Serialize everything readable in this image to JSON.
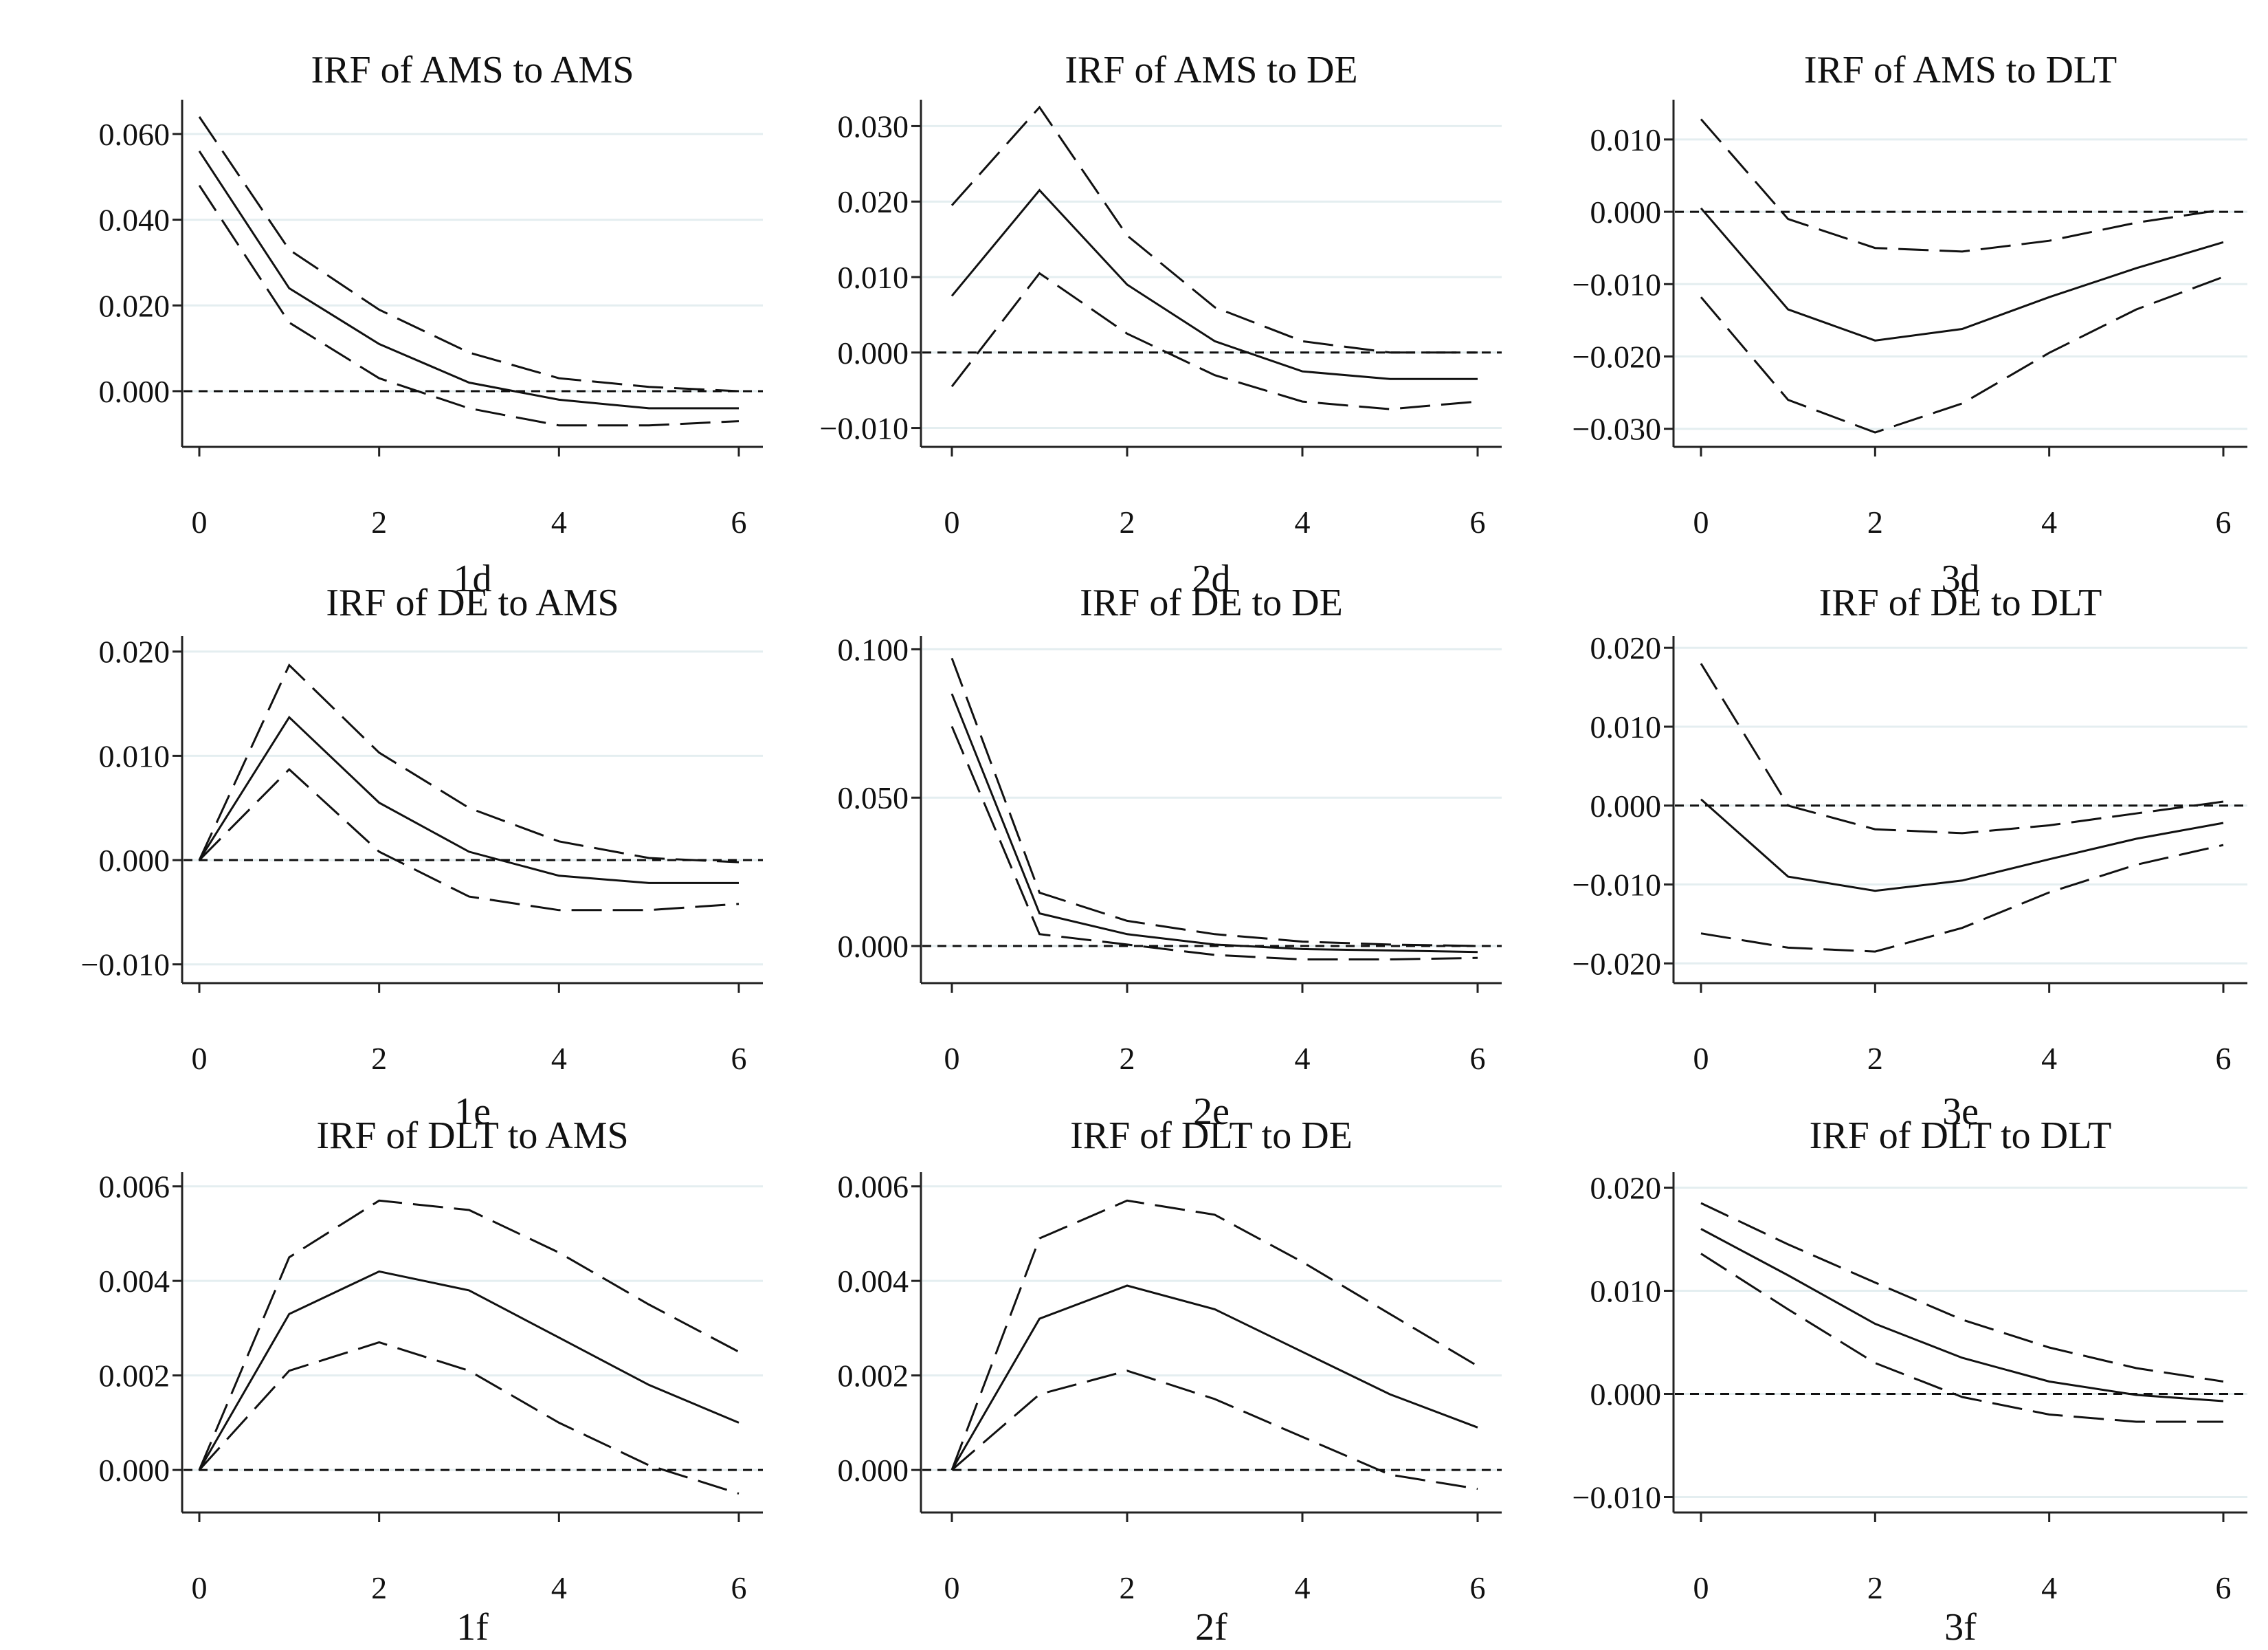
{
  "chart_data": [
    {
      "type": "line",
      "title": "IRF of AMS to AMS",
      "label": "1d",
      "x": [
        0,
        1,
        2,
        3,
        4,
        5,
        6
      ],
      "xticks": [
        "0",
        "2",
        "4",
        "6"
      ],
      "ylim": [
        -0.013,
        0.068
      ],
      "yticks": [
        0.0,
        0.02,
        0.04,
        0.06
      ],
      "ytick_labels": [
        "0.000",
        "0.020",
        "0.040",
        "0.060"
      ],
      "grid": true,
      "series": [
        {
          "role": "irf",
          "values": [
            0.056,
            0.024,
            0.011,
            0.002,
            -0.002,
            -0.004,
            -0.004
          ]
        },
        {
          "role": "upper",
          "values": [
            0.064,
            0.033,
            0.019,
            0.009,
            0.003,
            0.001,
            0.0
          ]
        },
        {
          "role": "lower",
          "values": [
            0.048,
            0.016,
            0.003,
            -0.004,
            -0.008,
            -0.008,
            -0.007
          ]
        }
      ]
    },
    {
      "type": "line",
      "title": "IRF of AMS to DE",
      "label": "2d",
      "x": [
        0,
        1,
        2,
        3,
        4,
        5,
        6
      ],
      "xticks": [
        "0",
        "2",
        "4",
        "6"
      ],
      "ylim": [
        -0.0125,
        0.0335
      ],
      "yticks": [
        -0.01,
        0.0,
        0.01,
        0.02,
        0.03
      ],
      "ytick_labels": [
        "−0.010",
        "0.000",
        "0.010",
        "0.020",
        "0.030"
      ],
      "grid": true,
      "series": [
        {
          "role": "irf",
          "values": [
            0.0075,
            0.0215,
            0.009,
            0.0015,
            -0.0025,
            -0.0035,
            -0.0035
          ]
        },
        {
          "role": "upper",
          "values": [
            0.0195,
            0.0325,
            0.0155,
            0.006,
            0.0015,
            0.0,
            0.0
          ]
        },
        {
          "role": "lower",
          "values": [
            -0.0045,
            0.0105,
            0.0025,
            -0.003,
            -0.0065,
            -0.0075,
            -0.0065
          ]
        }
      ]
    },
    {
      "type": "line",
      "title": "IRF of AMS to DLT",
      "label": "3d",
      "x": [
        0,
        1,
        2,
        3,
        4,
        5,
        6
      ],
      "xticks": [
        "0",
        "2",
        "4",
        "6"
      ],
      "ylim": [
        -0.0325,
        0.0155
      ],
      "yticks": [
        -0.03,
        -0.02,
        -0.01,
        0.0,
        0.01
      ],
      "ytick_labels": [
        "−0.030",
        "−0.020",
        "−0.010",
        "0.000",
        "0.010"
      ],
      "grid": true,
      "series": [
        {
          "role": "irf",
          "values": [
            0.0005,
            -0.0135,
            -0.0178,
            -0.0162,
            -0.0118,
            -0.0078,
            -0.0042
          ]
        },
        {
          "role": "upper",
          "values": [
            0.0128,
            -0.001,
            -0.005,
            -0.0055,
            -0.004,
            -0.0015,
            0.0003
          ]
        },
        {
          "role": "lower",
          "values": [
            -0.0118,
            -0.026,
            -0.0305,
            -0.0265,
            -0.0195,
            -0.0135,
            -0.009
          ]
        }
      ]
    },
    {
      "type": "line",
      "title": "IRF of DE to AMS",
      "label": "1e",
      "x": [
        0,
        1,
        2,
        3,
        4,
        5,
        6
      ],
      "xticks": [
        "0",
        "2",
        "4",
        "6"
      ],
      "ylim": [
        -0.0118,
        0.0215
      ],
      "yticks": [
        -0.01,
        0.0,
        0.01,
        0.02
      ],
      "ytick_labels": [
        "−0.010",
        "0.000",
        "0.010",
        "0.020"
      ],
      "grid": true,
      "series": [
        {
          "role": "irf",
          "values": [
            0.0,
            0.0137,
            0.0055,
            0.0008,
            -0.0015,
            -0.0022,
            -0.0022
          ]
        },
        {
          "role": "upper",
          "values": [
            0.0,
            0.0187,
            0.0103,
            0.005,
            0.0018,
            0.0002,
            -0.0002
          ]
        },
        {
          "role": "lower",
          "values": [
            0.0,
            0.0087,
            0.0008,
            -0.0035,
            -0.0048,
            -0.0048,
            -0.0042
          ]
        }
      ]
    },
    {
      "type": "line",
      "title": "IRF of DE to DE",
      "label": "2e",
      "x": [
        0,
        1,
        2,
        3,
        4,
        5,
        6
      ],
      "xticks": [
        "0",
        "2",
        "4",
        "6"
      ],
      "ylim": [
        -0.0125,
        0.1045
      ],
      "yticks": [
        0.0,
        0.05,
        0.1
      ],
      "ytick_labels": [
        "0.000",
        "0.050",
        "0.100"
      ],
      "grid": true,
      "series": [
        {
          "role": "irf",
          "values": [
            0.085,
            0.011,
            0.004,
            0.0005,
            -0.001,
            -0.0015,
            -0.002
          ]
        },
        {
          "role": "upper",
          "values": [
            0.097,
            0.018,
            0.0085,
            0.004,
            0.0015,
            0.0005,
            0.0
          ]
        },
        {
          "role": "lower",
          "values": [
            0.074,
            0.004,
            0.0005,
            -0.003,
            -0.0045,
            -0.0045,
            -0.004
          ]
        }
      ]
    },
    {
      "type": "line",
      "title": "IRF of DE to DLT",
      "label": "3e",
      "x": [
        0,
        1,
        2,
        3,
        4,
        5,
        6
      ],
      "xticks": [
        "0",
        "2",
        "4",
        "6"
      ],
      "ylim": [
        -0.0225,
        0.0215
      ],
      "yticks": [
        -0.02,
        -0.01,
        0.0,
        0.01,
        0.02
      ],
      "ytick_labels": [
        "−0.020",
        "−0.010",
        "0.000",
        "0.010",
        "0.020"
      ],
      "grid": true,
      "series": [
        {
          "role": "irf",
          "values": [
            0.0008,
            -0.009,
            -0.0108,
            -0.0095,
            -0.0068,
            -0.0042,
            -0.0022
          ]
        },
        {
          "role": "upper",
          "values": [
            0.018,
            0.0,
            -0.003,
            -0.0035,
            -0.0025,
            -0.001,
            0.0005
          ]
        },
        {
          "role": "lower",
          "values": [
            -0.0162,
            -0.018,
            -0.0185,
            -0.0155,
            -0.011,
            -0.0075,
            -0.005
          ]
        }
      ]
    },
    {
      "type": "line",
      "title": "IRF of DLT to AMS",
      "label": "1f",
      "x": [
        0,
        1,
        2,
        3,
        4,
        5,
        6
      ],
      "xticks": [
        "0",
        "2",
        "4",
        "6"
      ],
      "ylim": [
        -0.0009,
        0.0063
      ],
      "yticks": [
        0.0,
        0.002,
        0.004,
        0.006
      ],
      "ytick_labels": [
        "0.000",
        "0.002",
        "0.004",
        "0.006"
      ],
      "grid": true,
      "series": [
        {
          "role": "irf",
          "values": [
            0.0,
            0.0033,
            0.0042,
            0.0038,
            0.0028,
            0.0018,
            0.001
          ]
        },
        {
          "role": "upper",
          "values": [
            0.0,
            0.0045,
            0.0057,
            0.0055,
            0.0046,
            0.0035,
            0.0025
          ]
        },
        {
          "role": "lower",
          "values": [
            0.0,
            0.0021,
            0.0027,
            0.0021,
            0.001,
            0.0001,
            -0.0005
          ]
        }
      ]
    },
    {
      "type": "line",
      "title": "IRF of DLT to DE",
      "label": "2f",
      "x": [
        0,
        1,
        2,
        3,
        4,
        5,
        6
      ],
      "xticks": [
        "0",
        "2",
        "4",
        "6"
      ],
      "ylim": [
        -0.0009,
        0.0063
      ],
      "yticks": [
        0.0,
        0.002,
        0.004,
        0.006
      ],
      "ytick_labels": [
        "0.000",
        "0.002",
        "0.004",
        "0.006"
      ],
      "grid": true,
      "series": [
        {
          "role": "irf",
          "values": [
            0.0,
            0.0032,
            0.0039,
            0.0034,
            0.0025,
            0.0016,
            0.0009
          ]
        },
        {
          "role": "upper",
          "values": [
            0.0,
            0.0049,
            0.0057,
            0.0054,
            0.0044,
            0.0033,
            0.0022
          ]
        },
        {
          "role": "lower",
          "values": [
            0.0,
            0.0016,
            0.0021,
            0.0015,
            0.0007,
            -0.0001,
            -0.0004
          ]
        }
      ]
    },
    {
      "type": "line",
      "title": "IRF of DLT to DLT",
      "label": "3f",
      "x": [
        0,
        1,
        2,
        3,
        4,
        5,
        6
      ],
      "xticks": [
        "0",
        "2",
        "4",
        "6"
      ],
      "ylim": [
        -0.0115,
        0.0215
      ],
      "yticks": [
        -0.01,
        0.0,
        0.01,
        0.02
      ],
      "ytick_labels": [
        "−0.010",
        "0.000",
        "0.010",
        "0.020"
      ],
      "grid": true,
      "series": [
        {
          "role": "irf",
          "values": [
            0.016,
            0.0115,
            0.0068,
            0.0035,
            0.0012,
            -0.0001,
            -0.0007
          ]
        },
        {
          "role": "upper",
          "values": [
            0.0185,
            0.0145,
            0.0108,
            0.0072,
            0.0045,
            0.0025,
            0.0012
          ]
        },
        {
          "role": "lower",
          "values": [
            0.0136,
            0.0082,
            0.003,
            -0.0003,
            -0.002,
            -0.0027,
            -0.0027
          ]
        }
      ]
    }
  ]
}
